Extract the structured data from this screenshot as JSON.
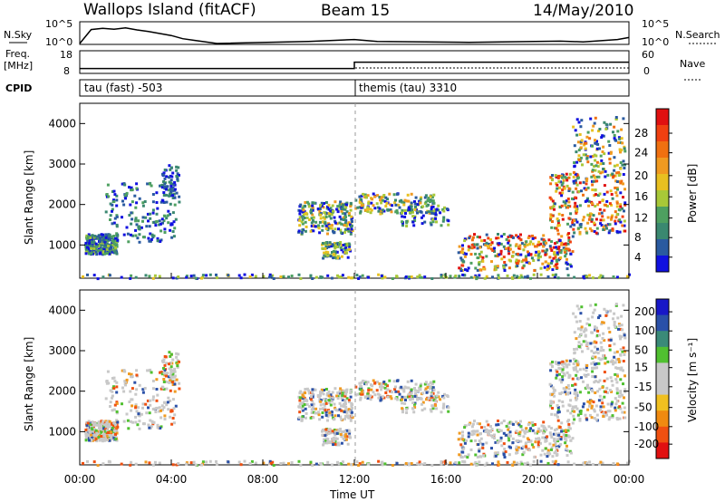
{
  "header": {
    "station": "Wallops Island (fitACF)",
    "beam": "Beam 15",
    "date": "14/May/2010"
  },
  "top_panels": {
    "nsky_label": "N.Sky",
    "nsearch_label": "N.Search",
    "nsky_ticks": [
      "10^5",
      "10^0"
    ],
    "freq_label_1": "Freq.",
    "freq_label_2": "[MHz]",
    "freq_ticks": [
      "18",
      "8"
    ],
    "nave_label": "Nave",
    "nave_ticks": [
      "60",
      "0"
    ],
    "cpid_label": "CPID",
    "cpid_1": "tau (fast) -503",
    "cpid_2": "themis (tau) 3310"
  },
  "axes": {
    "ylabel": "Slant Range [km]",
    "yticks": [
      "4000",
      "3000",
      "2000",
      "1000"
    ],
    "xticks": [
      "00:00",
      "04:00",
      "08:00",
      "12:00",
      "16:00",
      "20:00",
      "00:00"
    ],
    "xlabel": "Time UT"
  },
  "colorbars": {
    "power": {
      "label": "Power [dB]",
      "ticks": [
        "28",
        "24",
        "20",
        "16",
        "12",
        "8",
        "4"
      ],
      "colors": [
        "#e01010",
        "#f04010",
        "#f07010",
        "#f09a20",
        "#e8c020",
        "#a8c838",
        "#4ea060",
        "#3a8870",
        "#2a5aa0",
        "#1010e0"
      ]
    },
    "velocity": {
      "label": "Velocity [m s⁻¹]",
      "ticks": [
        "200",
        "100",
        "50",
        "15",
        "-15",
        "-50",
        "-100",
        "-200"
      ],
      "colors": [
        "#1818c8",
        "#2a50a8",
        "#3a8a78",
        "#50c030",
        "#c8c8c8",
        "#c8c8c8",
        "#f0c020",
        "#f08a10",
        "#f05010",
        "#e01010"
      ]
    }
  },
  "chart_data": [
    {
      "type": "line",
      "name": "N.Sky",
      "ylim": [
        0,
        5
      ],
      "x": [
        0,
        0.5,
        1,
        1.5,
        2,
        2.5,
        3,
        3.5,
        4,
        4.5,
        5,
        6,
        10,
        12,
        13,
        17,
        21,
        22,
        23,
        23.5,
        24
      ],
      "y": [
        0,
        3.5,
        3.8,
        3.6,
        3.9,
        3.4,
        3.0,
        2.5,
        2.0,
        1.2,
        0.8,
        0,
        0.5,
        1.0,
        0.5,
        0.3,
        0.6,
        0.4,
        0.8,
        1.0,
        1.5
      ]
    },
    {
      "type": "line",
      "name": "Freq.",
      "ylim": [
        8,
        18
      ],
      "x": [
        0,
        12,
        12,
        24
      ],
      "y": [
        10,
        10,
        13.2,
        13.2
      ]
    },
    {
      "type": "heatmap",
      "title": "Power [dB]",
      "xlabel": "Time UT",
      "ylabel": "Slant Range [km]",
      "xlim": [
        0,
        24
      ],
      "ylim": [
        180,
        4500
      ],
      "clim": [
        0,
        30
      ]
    },
    {
      "type": "heatmap",
      "title": "Velocity [m s⁻¹]",
      "xlabel": "Time UT",
      "ylabel": "Slant Range [km]",
      "xlim": [
        0,
        24
      ],
      "ylim": [
        180,
        4500
      ],
      "clim": [
        -200,
        200
      ]
    }
  ]
}
